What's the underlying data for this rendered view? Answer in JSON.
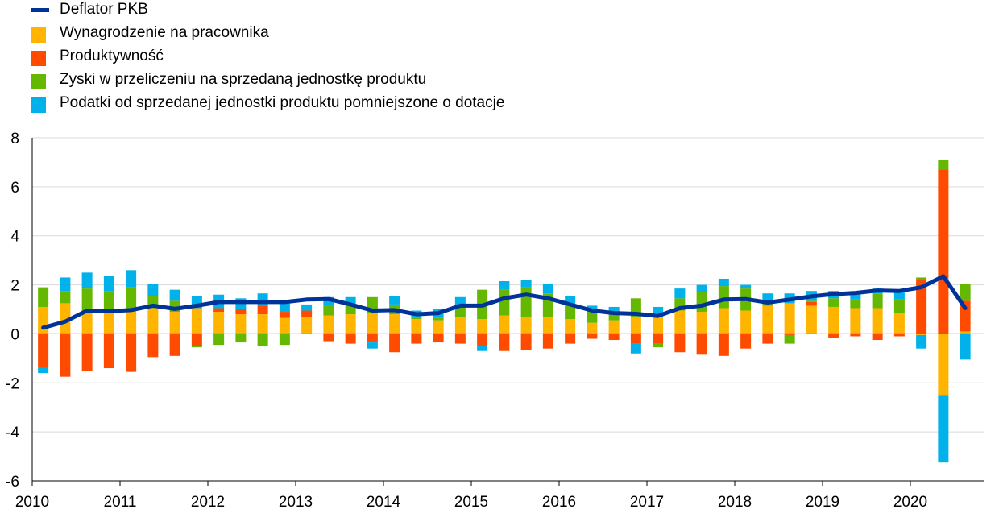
{
  "legend": [
    {
      "label": "Deflator PKB",
      "color": "#003399",
      "kind": "line"
    },
    {
      "label": "Wynagrodzenie na pracownika",
      "color": "#FFB400",
      "kind": "bar"
    },
    {
      "label": "Produktywność",
      "color": "#FF4B00",
      "kind": "bar"
    },
    {
      "label": "Zyski w przeliczeniu na sprzedaną jednostkę produktu",
      "color": "#65B800",
      "kind": "bar"
    },
    {
      "label": "Podatki od sprzedanej jednostki produktu pomniejszone o dotacje",
      "color": "#00B1EA",
      "kind": "bar"
    }
  ],
  "chart_data": {
    "type": "bar",
    "stacked": true,
    "title": "",
    "xlabel": "",
    "ylabel": "",
    "ylim": [
      -6,
      8
    ],
    "yticks": [
      -6,
      -4,
      -2,
      0,
      2,
      4,
      6,
      8
    ],
    "xticks": [
      "2010",
      "2011",
      "2012",
      "2013",
      "2014",
      "2015",
      "2016",
      "2017",
      "2018",
      "2019",
      "2020"
    ],
    "grid": true,
    "legend_position": "top-left",
    "categories": [
      "2010Q1",
      "2010Q2",
      "2010Q3",
      "2010Q4",
      "2011Q1",
      "2011Q2",
      "2011Q3",
      "2011Q4",
      "2012Q1",
      "2012Q2",
      "2012Q3",
      "2012Q4",
      "2013Q1",
      "2013Q2",
      "2013Q3",
      "2013Q4",
      "2014Q1",
      "2014Q2",
      "2014Q3",
      "2014Q4",
      "2015Q1",
      "2015Q2",
      "2015Q3",
      "2015Q4",
      "2016Q1",
      "2016Q2",
      "2016Q3",
      "2016Q4",
      "2017Q1",
      "2017Q2",
      "2017Q3",
      "2017Q4",
      "2018Q1",
      "2018Q2",
      "2018Q3",
      "2018Q4",
      "2019Q1",
      "2019Q2",
      "2019Q3",
      "2019Q4",
      "2020Q1",
      "2020Q2",
      "2020Q3"
    ],
    "series": [
      {
        "name": "Wynagrodzenie na pracownika",
        "color": "#FFB400",
        "values": [
          1.1,
          1.25,
          0.85,
          0.85,
          0.95,
          1.05,
          0.9,
          1.05,
          0.9,
          0.8,
          0.8,
          0.65,
          0.7,
          0.75,
          0.8,
          0.85,
          0.8,
          0.6,
          0.55,
          0.7,
          0.6,
          0.75,
          0.7,
          0.7,
          0.6,
          0.45,
          0.55,
          0.7,
          0.7,
          0.95,
          0.9,
          1.05,
          0.95,
          1.15,
          1.25,
          1.15,
          1.1,
          1.05,
          1.05,
          0.85,
          -0.05,
          -2.5,
          0.1
        ]
      },
      {
        "name": "Produktywność",
        "color": "#FF4B00",
        "values": [
          -1.35,
          -1.75,
          -1.5,
          -1.4,
          -1.55,
          -0.95,
          -0.9,
          -0.5,
          0.15,
          0.2,
          0.35,
          0.25,
          0.25,
          -0.3,
          -0.4,
          -0.35,
          -0.75,
          -0.4,
          -0.35,
          -0.4,
          -0.5,
          -0.7,
          -0.65,
          -0.6,
          -0.4,
          -0.2,
          -0.25,
          -0.4,
          -0.4,
          -0.75,
          -0.85,
          -0.9,
          -0.6,
          -0.4,
          -0.05,
          0.15,
          -0.15,
          -0.1,
          -0.25,
          -0.1,
          2.2,
          6.7,
          1.25
        ]
      },
      {
        "name": "Zyski w przeliczeniu na sprzedaną jednostkę produktu",
        "color": "#65B800",
        "values": [
          0.8,
          0.5,
          1.0,
          0.9,
          0.95,
          0.5,
          0.45,
          -0.05,
          -0.45,
          -0.35,
          -0.5,
          -0.45,
          0.0,
          0.4,
          0.35,
          0.65,
          0.4,
          0.05,
          0.1,
          0.45,
          1.2,
          1.05,
          1.2,
          0.95,
          0.65,
          0.45,
          0.25,
          0.75,
          -0.15,
          0.5,
          0.8,
          0.9,
          0.9,
          0.15,
          -0.35,
          0.05,
          0.35,
          0.35,
          0.6,
          0.55,
          0.1,
          0.4,
          0.7
        ]
      },
      {
        "name": "Podatki od sprzedanej jednostki produktu pomniejszone o dotacje",
        "color": "#00B1EA",
        "values": [
          -0.25,
          0.55,
          0.65,
          0.6,
          0.7,
          0.5,
          0.45,
          0.5,
          0.55,
          0.45,
          0.5,
          0.35,
          0.25,
          0.35,
          0.35,
          -0.25,
          0.35,
          0.3,
          0.35,
          0.35,
          -0.2,
          0.35,
          0.3,
          0.4,
          0.3,
          0.25,
          0.3,
          -0.4,
          0.4,
          0.4,
          0.3,
          0.3,
          0.15,
          0.35,
          0.4,
          0.4,
          0.3,
          0.25,
          0.2,
          0.4,
          -0.55,
          -2.75,
          -1.05
        ]
      }
    ],
    "line": {
      "name": "Deflator PKB",
      "color": "#003399",
      "values": [
        0.25,
        0.5,
        0.95,
        0.92,
        0.97,
        1.15,
        1.02,
        1.15,
        1.3,
        1.3,
        1.3,
        1.3,
        1.4,
        1.42,
        1.2,
        0.95,
        0.97,
        0.8,
        0.85,
        1.15,
        1.15,
        1.45,
        1.6,
        1.45,
        1.2,
        0.95,
        0.85,
        0.82,
        0.73,
        1.05,
        1.15,
        1.4,
        1.42,
        1.28,
        1.4,
        1.53,
        1.62,
        1.67,
        1.77,
        1.75,
        1.9,
        2.35,
        1.05
      ]
    }
  }
}
